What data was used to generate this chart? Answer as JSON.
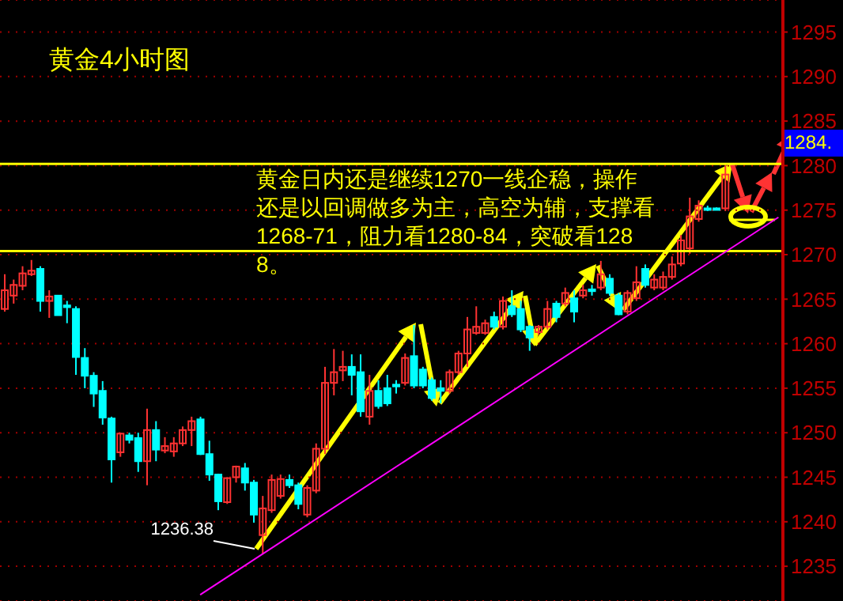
{
  "chart_data": {
    "type": "candlestick",
    "title": "黄金4小时图",
    "categories": [
      null,
      null,
      null,
      null,
      null,
      null,
      null,
      null,
      null,
      null,
      null,
      null,
      null,
      null,
      null,
      null,
      null,
      null,
      null,
      null,
      null,
      null,
      null,
      null,
      null,
      null,
      null,
      null,
      null,
      null,
      null,
      null,
      null,
      null,
      null,
      null,
      null,
      null,
      null,
      null,
      null,
      null,
      null,
      null,
      null,
      null,
      null,
      null,
      null,
      null,
      null,
      null,
      null,
      null,
      null,
      null,
      null,
      null,
      null,
      null,
      null,
      null,
      null,
      null,
      null,
      null,
      null,
      null,
      null,
      null,
      null,
      null,
      null,
      null,
      null,
      null,
      null,
      null,
      null,
      null,
      null,
      null,
      null,
      null,
      null,
      null,
      null,
      null
    ],
    "ohlc": [
      [
        1263.9,
        1267.8,
        1263.6,
        1266.0
      ],
      [
        1265.4,
        1267.2,
        1264.5,
        1266.6
      ],
      [
        1266.5,
        1268.7,
        1266.0,
        1267.9
      ],
      [
        1267.8,
        1269.4,
        1267.6,
        1268.2
      ],
      [
        1268.4,
        1268.7,
        1263.6,
        1264.8
      ],
      [
        1264.8,
        1266.0,
        1262.9,
        1265.3
      ],
      [
        1265.4,
        1265.4,
        1263.2,
        1263.2
      ],
      [
        1264.3,
        1264.8,
        1262.3,
        1264.1
      ],
      [
        1263.9,
        1264.2,
        1256.5,
        1258.5
      ],
      [
        1258.4,
        1259.5,
        1255.0,
        1256.4
      ],
      [
        1256.4,
        1256.8,
        1252.9,
        1254.4
      ],
      [
        1254.7,
        1255.8,
        1250.9,
        1251.7
      ],
      [
        1251.6,
        1251.8,
        1244.4,
        1247.0
      ],
      [
        1247.8,
        1250.0,
        1247.3,
        1249.9
      ],
      [
        1249.7,
        1250.0,
        1248.8,
        1249.2
      ],
      [
        1249.4,
        1250.0,
        1245.6,
        1246.8
      ],
      [
        1246.8,
        1252.7,
        1244.1,
        1250.3
      ],
      [
        1250.3,
        1251.3,
        1246.8,
        1248.1
      ],
      [
        1248.0,
        1249.5,
        1247.7,
        1248.5
      ],
      [
        1247.9,
        1249.5,
        1247.3,
        1248.8
      ],
      [
        1248.8,
        1250.7,
        1248.5,
        1250.3
      ],
      [
        1250.3,
        1251.8,
        1248.5,
        1251.3
      ],
      [
        1251.5,
        1251.8,
        1247.5,
        1247.6
      ],
      [
        1247.6,
        1249.1,
        1244.6,
        1245.3
      ],
      [
        1245.3,
        1245.4,
        1241.3,
        1242.3
      ],
      [
        1242.2,
        1245.0,
        1242.0,
        1244.9
      ],
      [
        1245.0,
        1246.3,
        1244.4,
        1246.2
      ],
      [
        1246.0,
        1246.6,
        1243.5,
        1244.4
      ],
      [
        1244.4,
        1244.7,
        1239.9,
        1240.8
      ],
      [
        1238.5,
        1242.9,
        1236.38,
        1241.5
      ],
      [
        1241.3,
        1245.3,
        1241.0,
        1244.7
      ],
      [
        1242.9,
        1245.3,
        1242.6,
        1244.8
      ],
      [
        1244.7,
        1245.3,
        1243.8,
        1244.1
      ],
      [
        1244.1,
        1244.4,
        1241.4,
        1242.0
      ],
      [
        1240.8,
        1244.1,
        1240.5,
        1243.8
      ],
      [
        1243.5,
        1248.8,
        1243.2,
        1248.2
      ],
      [
        1248.2,
        1257.4,
        1247.6,
        1255.6
      ],
      [
        1255.6,
        1259.4,
        1254.2,
        1256.8
      ],
      [
        1257.0,
        1259.2,
        1255.8,
        1257.4
      ],
      [
        1257.4,
        1258.8,
        1254.2,
        1256.5
      ],
      [
        1256.8,
        1258.8,
        1251.8,
        1252.4
      ],
      [
        1251.8,
        1256.5,
        1250.9,
        1254.7
      ],
      [
        1254.7,
        1255.9,
        1252.7,
        1253.0
      ],
      [
        1255.0,
        1256.5,
        1253.0,
        1253.3
      ],
      [
        1255.4,
        1255.9,
        1254.4,
        1255.2
      ],
      [
        1255.6,
        1258.9,
        1255.3,
        1258.4
      ],
      [
        1258.6,
        1262.1,
        1255.0,
        1255.3
      ],
      [
        1257.1,
        1257.4,
        1255.0,
        1255.3
      ],
      [
        1255.9,
        1256.2,
        1253.6,
        1253.9
      ],
      [
        1255.0,
        1255.9,
        1253.3,
        1254.7
      ],
      [
        1254.7,
        1257.1,
        1254.4,
        1256.8
      ],
      [
        1256.8,
        1259.2,
        1256.5,
        1258.9
      ],
      [
        1258.9,
        1263.0,
        1257.4,
        1261.6
      ],
      [
        1261.2,
        1264.2,
        1261.0,
        1261.9
      ],
      [
        1261.2,
        1262.7,
        1261.0,
        1262.3
      ],
      [
        1263.0,
        1263.6,
        1261.6,
        1261.9
      ],
      [
        1261.9,
        1265.3,
        1261.6,
        1264.8
      ],
      [
        1264.2,
        1266.0,
        1263.0,
        1263.3
      ],
      [
        1263.9,
        1264.8,
        1261.3,
        1261.6
      ],
      [
        1261.9,
        1262.1,
        1259.2,
        1260.7
      ],
      [
        1261.3,
        1262.1,
        1261.0,
        1261.9
      ],
      [
        1261.9,
        1264.8,
        1261.6,
        1263.9
      ],
      [
        1264.5,
        1264.8,
        1262.4,
        1263.0
      ],
      [
        1264.5,
        1266.3,
        1264.2,
        1265.7
      ],
      [
        1265.1,
        1266.0,
        1262.4,
        1263.6
      ],
      [
        1265.4,
        1266.6,
        1265.1,
        1266.0
      ],
      [
        1266.1,
        1266.6,
        1265.4,
        1265.9
      ],
      [
        1266.3,
        1269.3,
        1266.0,
        1267.8
      ],
      [
        1267.3,
        1267.8,
        1265.4,
        1265.7
      ],
      [
        1265.4,
        1265.7,
        1263.2,
        1263.3
      ],
      [
        1263.6,
        1266.0,
        1263.3,
        1265.7
      ],
      [
        1265.1,
        1268.7,
        1264.8,
        1266.9
      ],
      [
        1268.4,
        1268.9,
        1266.3,
        1266.6
      ],
      [
        1266.3,
        1267.8,
        1266.0,
        1267.2
      ],
      [
        1266.3,
        1268.1,
        1266.0,
        1267.5
      ],
      [
        1267.5,
        1269.8,
        1267.2,
        1268.9
      ],
      [
        1269.0,
        1272.2,
        1268.7,
        1271.6
      ],
      [
        1270.7,
        1276.4,
        1270.1,
        1274.3
      ],
      [
        1274.0,
        1276.1,
        1273.7,
        1275.5
      ],
      [
        1275.2,
        1275.5,
        1274.9,
        1275.1
      ],
      [
        1275.2,
        1275.3,
        1275.0,
        1275.1
      ],
      [
        1275.2,
        1280.2,
        1274.9,
        1279.0
      ],
      null,
      null,
      null,
      null,
      null,
      null
    ],
    "colors": [
      "#ff3232",
      "#ff3232",
      "#ff3232",
      "#ff3232",
      "#00ffff",
      "#ff3232",
      "#00ffff",
      "#00ffff",
      "#00ffff",
      "#00ffff",
      "#00ffff",
      "#00ffff",
      "#00ffff",
      "#ff3232",
      "#00ffff",
      "#00ffff",
      "#ff3232",
      "#00ffff",
      "#ff3232",
      "#ff3232",
      "#ff3232",
      "#ff3232",
      "#00ffff",
      "#00ffff",
      "#00ffff",
      "#ff3232",
      "#ff3232",
      "#00ffff",
      "#00ffff",
      "#ff3232",
      "#ff3232",
      "#ff3232",
      "#00ffff",
      "#00ffff",
      "#ff3232",
      "#ff3232",
      "#ff3232",
      "#ff3232",
      "#ff3232",
      "#00ffff",
      "#00ffff",
      "#ff3232",
      "#00ffff",
      "#00ffff",
      "#00ffff",
      "#ff3232",
      "#00ffff",
      "#00ffff",
      "#00ffff",
      "#00ffff",
      "#ff3232",
      "#ff3232",
      "#ff3232",
      "#ff3232",
      "#ff3232",
      "#00ffff",
      "#ff3232",
      "#00ffff",
      "#00ffff",
      "#00ffff",
      "#ff3232",
      "#ff3232",
      "#00ffff",
      "#ff3232",
      "#00ffff",
      "#ff3232",
      "#00ffff",
      "#ff3232",
      "#00ffff",
      "#00ffff",
      "#ff3232",
      "#ff3232",
      "#00ffff",
      "#ff3232",
      "#ff3232",
      "#ff3232",
      "#ff3232",
      "#ff3232",
      "#ff3232",
      "#00ffff",
      "#00ffff",
      "#ff3232",
      null,
      null,
      null,
      null,
      null,
      null
    ],
    "series": [
      {
        "type": "line",
        "color": "#ff00ff",
        "values": [
          null,
          null,
          null,
          null,
          null,
          null,
          null,
          null,
          null,
          null,
          null,
          null,
          null,
          null,
          null,
          null,
          null,
          null,
          null,
          null,
          null,
          null,
          1231.8,
          null,
          null,
          null,
          null,
          null,
          null,
          null,
          null,
          null,
          null,
          null,
          null,
          null,
          null,
          null,
          null,
          null,
          null,
          null,
          null,
          null,
          null,
          null,
          null,
          null,
          null,
          null,
          null,
          null,
          null,
          null,
          null,
          null,
          null,
          null,
          null,
          null,
          null,
          null,
          null,
          null,
          null,
          null,
          null,
          null,
          null,
          null,
          null,
          null,
          null,
          null,
          null,
          null,
          null,
          null,
          null,
          null,
          null,
          null,
          null,
          null,
          null,
          null,
          null,
          1274.2
        ]
      }
    ],
    "ylim": [
      1231.1,
      1298.6
    ],
    "yticks": [
      1235,
      1240,
      1245,
      1250,
      1255,
      1260,
      1265,
      1270,
      1275,
      1280,
      1285,
      1290,
      1295
    ],
    "grid": "y",
    "tick_labels": "y",
    "ref_lines": [
      {
        "axis": "y",
        "value": 1280.2,
        "color": "#ffff00"
      },
      {
        "axis": "y",
        "value": 1270.4,
        "color": "#ffff00"
      }
    ],
    "annotations": [
      "黄金日内还是继续1270一线企稳，操作还是以回调做多为主，高空为辅，支撑看1268-71，阻力看1280-84，突破看1288。",
      "1236.38",
      "1284."
    ]
  }
}
